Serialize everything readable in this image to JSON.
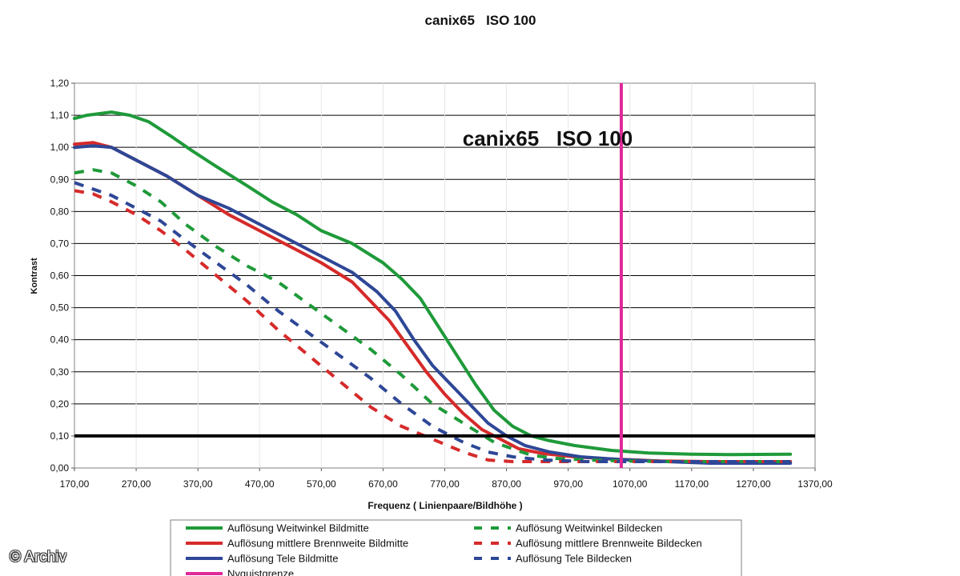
{
  "chart_data": {
    "type": "line",
    "title": "canix65   ISO 100",
    "inner_title": "canix65   ISO 100",
    "xlabel": "Frequenz ( Linienpaare/Bildhöhe )",
    "ylabel": "Kontrast",
    "xlim": [
      170,
      1370
    ],
    "ylim": [
      0,
      1.2
    ],
    "x_ticks": [
      "170,00",
      "270,00",
      "370,00",
      "470,00",
      "570,00",
      "670,00",
      "770,00",
      "870,00",
      "970,00",
      "1070,00",
      "1170,00",
      "1270,00",
      "1370,00"
    ],
    "y_ticks": [
      "0,00",
      "0,10",
      "0,20",
      "0,30",
      "0,40",
      "0,50",
      "0,60",
      "0,70",
      "0,80",
      "0,90",
      "1,00",
      "1,10",
      "1,20"
    ],
    "grid": "horizontal",
    "reference_line": {
      "y": 0.1,
      "color": "#000000"
    },
    "nyquist": {
      "x": 1056,
      "color": "#e0299a"
    },
    "series": [
      {
        "name": "Auflösung Weitwinkel Bildmitte",
        "color": "#1f9a3a",
        "dash": false,
        "points": [
          [
            170,
            1.09
          ],
          [
            190,
            1.1
          ],
          [
            230,
            1.11
          ],
          [
            260,
            1.1
          ],
          [
            290,
            1.08
          ],
          [
            330,
            1.03
          ],
          [
            360,
            0.99
          ],
          [
            400,
            0.94
          ],
          [
            450,
            0.88
          ],
          [
            490,
            0.83
          ],
          [
            530,
            0.79
          ],
          [
            570,
            0.74
          ],
          [
            620,
            0.7
          ],
          [
            670,
            0.64
          ],
          [
            700,
            0.59
          ],
          [
            730,
            0.53
          ],
          [
            760,
            0.44
          ],
          [
            790,
            0.35
          ],
          [
            820,
            0.26
          ],
          [
            850,
            0.18
          ],
          [
            880,
            0.13
          ],
          [
            910,
            0.1
          ],
          [
            940,
            0.085
          ],
          [
            980,
            0.07
          ],
          [
            1040,
            0.055
          ],
          [
            1100,
            0.047
          ],
          [
            1170,
            0.043
          ],
          [
            1230,
            0.042
          ],
          [
            1330,
            0.043
          ]
        ]
      },
      {
        "name": "Auflösung mittlere Brennweite Bildmitte",
        "color": "#d62a2a",
        "dash": false,
        "points": [
          [
            170,
            1.01
          ],
          [
            200,
            1.015
          ],
          [
            230,
            1.0
          ],
          [
            270,
            0.96
          ],
          [
            320,
            0.91
          ],
          [
            370,
            0.85
          ],
          [
            420,
            0.79
          ],
          [
            470,
            0.74
          ],
          [
            520,
            0.69
          ],
          [
            570,
            0.64
          ],
          [
            620,
            0.58
          ],
          [
            650,
            0.52
          ],
          [
            680,
            0.46
          ],
          [
            710,
            0.38
          ],
          [
            740,
            0.3
          ],
          [
            770,
            0.23
          ],
          [
            800,
            0.17
          ],
          [
            830,
            0.12
          ],
          [
            860,
            0.09
          ],
          [
            890,
            0.06
          ],
          [
            930,
            0.045
          ],
          [
            980,
            0.035
          ],
          [
            1040,
            0.028
          ],
          [
            1120,
            0.022
          ],
          [
            1200,
            0.02
          ],
          [
            1330,
            0.02
          ]
        ]
      },
      {
        "name": "Auflösung Tele Bildmitte",
        "color": "#2e4796",
        "dash": false,
        "points": [
          [
            170,
            1.0
          ],
          [
            200,
            1.005
          ],
          [
            230,
            1.0
          ],
          [
            270,
            0.96
          ],
          [
            320,
            0.91
          ],
          [
            370,
            0.85
          ],
          [
            420,
            0.81
          ],
          [
            470,
            0.76
          ],
          [
            520,
            0.71
          ],
          [
            570,
            0.66
          ],
          [
            620,
            0.61
          ],
          [
            660,
            0.55
          ],
          [
            690,
            0.49
          ],
          [
            720,
            0.4
          ],
          [
            750,
            0.32
          ],
          [
            780,
            0.26
          ],
          [
            810,
            0.2
          ],
          [
            840,
            0.14
          ],
          [
            870,
            0.1
          ],
          [
            900,
            0.07
          ],
          [
            940,
            0.05
          ],
          [
            990,
            0.035
          ],
          [
            1050,
            0.027
          ],
          [
            1130,
            0.02
          ],
          [
            1200,
            0.015
          ],
          [
            1330,
            0.015
          ]
        ]
      },
      {
        "name": "Auflösung Weitwinkel Bildecken",
        "color": "#1f9a3a",
        "dash": true,
        "points": [
          [
            170,
            0.92
          ],
          [
            200,
            0.93
          ],
          [
            230,
            0.92
          ],
          [
            270,
            0.88
          ],
          [
            310,
            0.83
          ],
          [
            350,
            0.76
          ],
          [
            400,
            0.69
          ],
          [
            450,
            0.63
          ],
          [
            500,
            0.58
          ],
          [
            550,
            0.51
          ],
          [
            600,
            0.44
          ],
          [
            650,
            0.37
          ],
          [
            700,
            0.29
          ],
          [
            750,
            0.2
          ],
          [
            800,
            0.14
          ],
          [
            850,
            0.08
          ],
          [
            880,
            0.06
          ],
          [
            910,
            0.04
          ],
          [
            950,
            0.03
          ],
          [
            1000,
            0.025
          ],
          [
            1060,
            0.022
          ],
          [
            1130,
            0.02
          ],
          [
            1200,
            0.02
          ],
          [
            1330,
            0.02
          ]
        ]
      },
      {
        "name": "Auflösung mittlere Brennweite Bildecken",
        "color": "#d62a2a",
        "dash": true,
        "points": [
          [
            170,
            0.865
          ],
          [
            200,
            0.855
          ],
          [
            230,
            0.83
          ],
          [
            270,
            0.79
          ],
          [
            310,
            0.74
          ],
          [
            350,
            0.68
          ],
          [
            400,
            0.6
          ],
          [
            450,
            0.52
          ],
          [
            500,
            0.43
          ],
          [
            550,
            0.35
          ],
          [
            600,
            0.27
          ],
          [
            650,
            0.19
          ],
          [
            700,
            0.13
          ],
          [
            750,
            0.09
          ],
          [
            800,
            0.05
          ],
          [
            840,
            0.025
          ],
          [
            880,
            0.02
          ],
          [
            940,
            0.02
          ],
          [
            1000,
            0.02
          ],
          [
            1100,
            0.02
          ],
          [
            1200,
            0.02
          ],
          [
            1330,
            0.02
          ]
        ]
      },
      {
        "name": "Auflösung Tele Bildecken",
        "color": "#2e4796",
        "dash": true,
        "points": [
          [
            170,
            0.89
          ],
          [
            200,
            0.87
          ],
          [
            230,
            0.85
          ],
          [
            270,
            0.81
          ],
          [
            310,
            0.77
          ],
          [
            350,
            0.71
          ],
          [
            400,
            0.64
          ],
          [
            450,
            0.57
          ],
          [
            500,
            0.49
          ],
          [
            550,
            0.42
          ],
          [
            600,
            0.35
          ],
          [
            650,
            0.28
          ],
          [
            700,
            0.2
          ],
          [
            750,
            0.13
          ],
          [
            800,
            0.08
          ],
          [
            840,
            0.05
          ],
          [
            880,
            0.035
          ],
          [
            930,
            0.025
          ],
          [
            1000,
            0.02
          ],
          [
            1100,
            0.02
          ],
          [
            1200,
            0.02
          ],
          [
            1330,
            0.02
          ]
        ]
      }
    ],
    "legend": {
      "position": "bottom",
      "entries": [
        {
          "label": "Auflösung Weitwinkel Bildmitte",
          "color": "#1f9a3a",
          "dash": false
        },
        {
          "label": "Auflösung Weitwinkel Bildecken",
          "color": "#1f9a3a",
          "dash": true
        },
        {
          "label": "Auflösung mittlere Brennweite Bildmitte",
          "color": "#d62a2a",
          "dash": false
        },
        {
          "label": "Auflösung mittlere Brennweite Bildecken",
          "color": "#d62a2a",
          "dash": true
        },
        {
          "label": "Auflösung Tele Bildmitte",
          "color": "#2e4796",
          "dash": false
        },
        {
          "label": "Auflösung Tele Bildecken",
          "color": "#2e4796",
          "dash": true
        },
        {
          "label": "Nyquistgrenze",
          "color": "#e0299a",
          "dash": false
        }
      ]
    }
  },
  "watermark": "© Archiv"
}
